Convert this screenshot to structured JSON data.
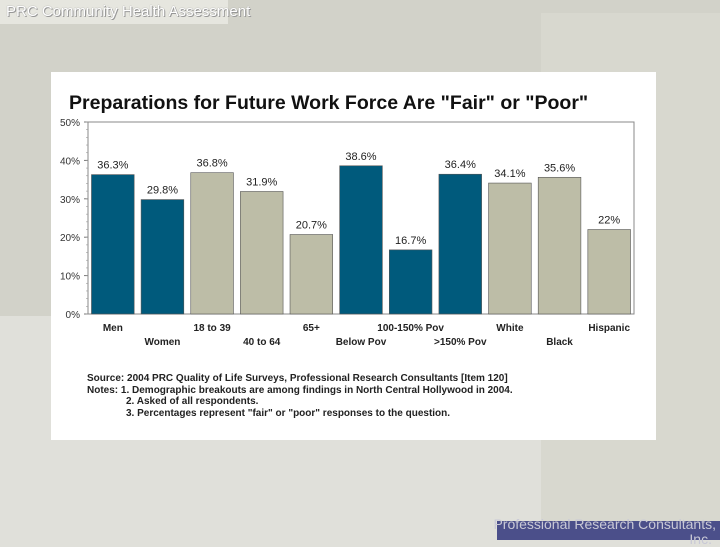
{
  "header": {
    "title": "PRC Community Health Assessment"
  },
  "footer": {
    "line1": "Professional Research Consultants,",
    "line2": "Inc."
  },
  "chart_data": {
    "type": "bar",
    "title": "Preparations for Future Work Force Are \"Fair\" or \"Poor\"",
    "categories": [
      "Men",
      "Women",
      "18 to 39",
      "40 to 64",
      "65+",
      "Below Pov",
      "100-150% Pov",
      ">150% Pov",
      "White",
      "Black",
      "Hispanic"
    ],
    "values": [
      36.3,
      29.8,
      36.8,
      31.9,
      20.7,
      38.6,
      16.7,
      36.4,
      34.1,
      35.6,
      22
    ],
    "value_labels": [
      "36.3%",
      "29.8%",
      "36.8%",
      "31.9%",
      "20.7%",
      "38.6%",
      "16.7%",
      "36.4%",
      "34.1%",
      "35.6%",
      "22%"
    ],
    "bar_colors": [
      "#005a7c",
      "#005a7c",
      "#bdbda7",
      "#bdbda7",
      "#bdbda7",
      "#005a7c",
      "#005a7c",
      "#005a7c",
      "#bdbda7",
      "#bdbda7",
      "#bdbda7"
    ],
    "ylim": [
      0,
      50
    ],
    "yticks": [
      0,
      10,
      20,
      30,
      40,
      50
    ],
    "ytick_labels": [
      "0%",
      "10%",
      "20%",
      "30%",
      "40%",
      "50%"
    ],
    "grid": false,
    "xlabel": "",
    "ylabel": ""
  },
  "notes": {
    "source": "Source: 2004 PRC Quality of Life Surveys, Professional Research Consultants [Item 120]",
    "notes_prefix": "Notes:",
    "note1": "1. Demographic breakouts are among findings in North Central Hollywood in 2004.",
    "note2": "2. Asked of all respondents.",
    "note3": "3. Percentages represent \"fair\" or \"poor\" responses to the question."
  }
}
